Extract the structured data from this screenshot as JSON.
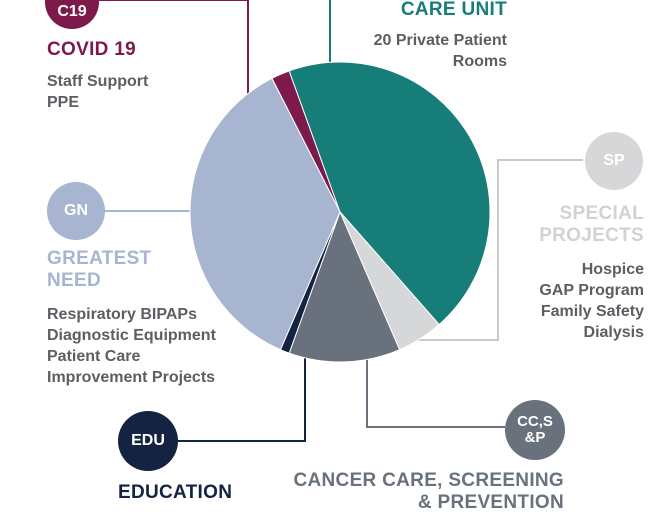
{
  "colors": {
    "covid": "#7b1a4b",
    "care_unit": "#177d79",
    "special": "#d6d7d9",
    "cancer": "#69727c",
    "education": "#142341",
    "greatest_need": "#a8b5d1",
    "text_gray": "#5b5e63",
    "line_gray": "#8e9398"
  },
  "covid": {
    "badge": "C19",
    "title": "COVID 19",
    "items": [
      "Staff Support",
      "PPE"
    ]
  },
  "care_unit": {
    "title": "CARE UNIT",
    "items": [
      "20 Private Patient",
      "Rooms"
    ]
  },
  "special": {
    "badge": "SP",
    "title_line1": "SPECIAL",
    "title_line2": "PROJECTS",
    "items": [
      "Hospice",
      "GAP Program",
      "Family Safety",
      "Dialysis"
    ]
  },
  "greatest_need": {
    "badge": "GN",
    "title_line1": "GREATEST",
    "title_line2": "NEED",
    "items": [
      "Respiratory BIPAPs",
      "Diagnostic Equipment",
      "Patient Care",
      "Improvement Projects"
    ]
  },
  "education": {
    "badge": "EDU",
    "title": "EDUCATION"
  },
  "cancer": {
    "badge_line1": "CC,S",
    "badge_line2": "&P",
    "title_line1": "CANCER CARE, SCREENING",
    "title_line2": "& PREVENTION"
  },
  "chart_data": {
    "type": "pie",
    "start_angle_deg": 243,
    "slices": [
      {
        "label": "COVID 19",
        "value": 2,
        "color": "#7b1a4b"
      },
      {
        "label": "CARE UNIT",
        "value": 44,
        "color": "#177d79"
      },
      {
        "label": "SPECIAL PROJECTS",
        "value": 5,
        "color": "#d6d7d9"
      },
      {
        "label": "CANCER CARE, SCREENING & PREVENTION",
        "value": 12,
        "color": "#69727c"
      },
      {
        "label": "EDUCATION",
        "value": 1,
        "color": "#142341"
      },
      {
        "label": "GREATEST NEED",
        "value": 36,
        "color": "#a8b5d1"
      }
    ]
  }
}
